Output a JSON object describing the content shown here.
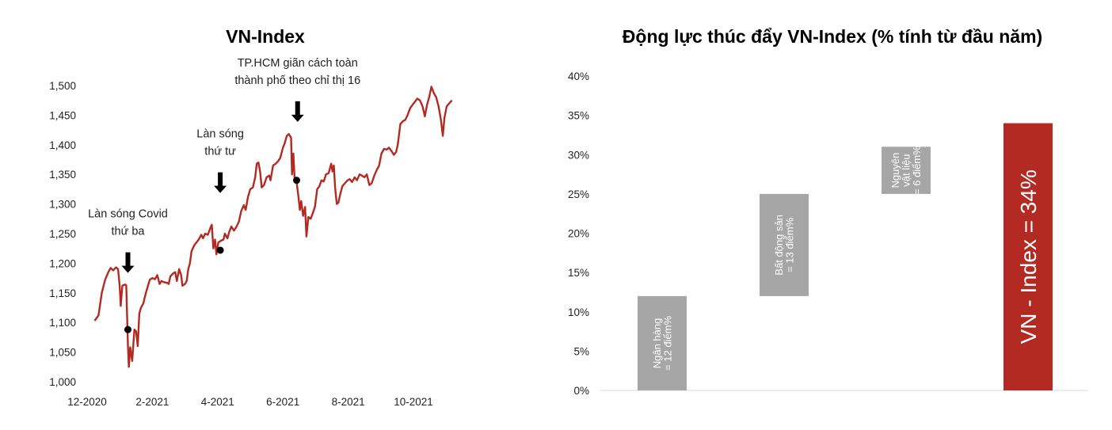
{
  "chart_data": [
    {
      "type": "line",
      "title": "VN-Index",
      "xlabel": "",
      "ylabel": "",
      "ylim": [
        1000,
        1500
      ],
      "y_ticks": [
        "1,000",
        "1,050",
        "1,100",
        "1,150",
        "1,200",
        "1,250",
        "1,300",
        "1,350",
        "1,400",
        "1,450",
        "1,500"
      ],
      "x_ticks": [
        {
          "t": 0,
          "label": "12-2020"
        },
        {
          "t": 2,
          "label": "2-2021"
        },
        {
          "t": 4,
          "label": "4-2021"
        },
        {
          "t": 6,
          "label": "6-2021"
        },
        {
          "t": 8,
          "label": "8-2021"
        },
        {
          "t": 10,
          "label": "10-2021"
        }
      ],
      "color": "#b22a22",
      "series": [
        {
          "values": [
            [
              0.23,
              1103
            ],
            [
              0.35,
              1112
            ],
            [
              0.45,
              1150
            ],
            [
              0.55,
              1172
            ],
            [
              0.65,
              1185
            ],
            [
              0.72,
              1192
            ],
            [
              0.8,
              1188
            ],
            [
              0.88,
              1193
            ],
            [
              0.95,
              1190
            ],
            [
              1.0,
              1160
            ],
            [
              1.03,
              1128
            ],
            [
              1.08,
              1162
            ],
            [
              1.15,
              1164
            ],
            [
              1.2,
              1163
            ],
            [
              1.25,
              1062
            ],
            [
              1.28,
              1025
            ],
            [
              1.32,
              1058
            ],
            [
              1.38,
              1035
            ],
            [
              1.45,
              1088
            ],
            [
              1.5,
              1085
            ],
            [
              1.55,
              1060
            ],
            [
              1.6,
              1115
            ],
            [
              1.65,
              1125
            ],
            [
              1.72,
              1132
            ],
            [
              1.8,
              1150
            ],
            [
              1.88,
              1165
            ],
            [
              1.92,
              1172
            ],
            [
              2.0,
              1175
            ],
            [
              2.08,
              1173
            ],
            [
              2.15,
              1180
            ],
            [
              2.22,
              1165
            ],
            [
              2.28,
              1170
            ],
            [
              2.35,
              1168
            ],
            [
              2.45,
              1167
            ],
            [
              2.5,
              1165
            ],
            [
              2.55,
              1178
            ],
            [
              2.62,
              1182
            ],
            [
              2.7,
              1185
            ],
            [
              2.75,
              1170
            ],
            [
              2.82,
              1190
            ],
            [
              2.88,
              1180
            ],
            [
              2.92,
              1162
            ],
            [
              3.0,
              1165
            ],
            [
              3.05,
              1170
            ],
            [
              3.1,
              1190
            ],
            [
              3.15,
              1200
            ],
            [
              3.2,
              1220
            ],
            [
              3.28,
              1230
            ],
            [
              3.35,
              1235
            ],
            [
              3.42,
              1240
            ],
            [
              3.5,
              1248
            ],
            [
              3.55,
              1242
            ],
            [
              3.62,
              1250
            ],
            [
              3.7,
              1248
            ],
            [
              3.78,
              1260
            ],
            [
              3.82,
              1265
            ],
            [
              3.87,
              1225
            ],
            [
              3.92,
              1240
            ],
            [
              3.96,
              1215
            ],
            [
              4.02,
              1235
            ],
            [
              4.1,
              1238
            ],
            [
              4.18,
              1240
            ],
            [
              4.22,
              1250
            ],
            [
              4.3,
              1242
            ],
            [
              4.35,
              1252
            ],
            [
              4.42,
              1262
            ],
            [
              4.5,
              1255
            ],
            [
              4.58,
              1262
            ],
            [
              4.65,
              1270
            ],
            [
              4.72,
              1288
            ],
            [
              4.8,
              1298
            ],
            [
              4.86,
              1290
            ],
            [
              4.93,
              1312
            ],
            [
              5.0,
              1325
            ],
            [
              5.08,
              1328
            ],
            [
              5.15,
              1345
            ],
            [
              5.2,
              1368
            ],
            [
              5.25,
              1370
            ],
            [
              5.3,
              1355
            ],
            [
              5.35,
              1328
            ],
            [
              5.42,
              1332
            ],
            [
              5.5,
              1345
            ],
            [
              5.58,
              1348
            ],
            [
              5.62,
              1340
            ],
            [
              5.7,
              1365
            ],
            [
              5.78,
              1368
            ],
            [
              5.85,
              1372
            ],
            [
              5.92,
              1378
            ],
            [
              6.0,
              1395
            ],
            [
              6.05,
              1402
            ],
            [
              6.12,
              1415
            ],
            [
              6.18,
              1418
            ],
            [
              6.25,
              1412
            ],
            [
              6.28,
              1350
            ],
            [
              6.32,
              1385
            ],
            [
              6.36,
              1342
            ],
            [
              6.42,
              1337
            ],
            [
              6.48,
              1310
            ],
            [
              6.52,
              1290
            ],
            [
              6.56,
              1305
            ],
            [
              6.62,
              1280
            ],
            [
              6.68,
              1295
            ],
            [
              6.72,
              1245
            ],
            [
              6.78,
              1278
            ],
            [
              6.85,
              1275
            ],
            [
              6.92,
              1285
            ],
            [
              6.98,
              1295
            ],
            [
              7.05,
              1325
            ],
            [
              7.12,
              1330
            ],
            [
              7.18,
              1340
            ],
            [
              7.25,
              1338
            ],
            [
              7.32,
              1350
            ],
            [
              7.4,
              1352
            ],
            [
              7.48,
              1368
            ],
            [
              7.52,
              1355
            ],
            [
              7.56,
              1365
            ],
            [
              7.6,
              1328
            ],
            [
              7.65,
              1300
            ],
            [
              7.7,
              1302
            ],
            [
              7.75,
              1315
            ],
            [
              7.82,
              1330
            ],
            [
              7.9,
              1335
            ],
            [
              7.98,
              1340
            ],
            [
              8.05,
              1342
            ],
            [
              8.12,
              1337
            ],
            [
              8.2,
              1345
            ],
            [
              8.27,
              1340
            ],
            [
              8.35,
              1350
            ],
            [
              8.42,
              1348
            ],
            [
              8.5,
              1345
            ],
            [
              8.57,
              1350
            ],
            [
              8.65,
              1332
            ],
            [
              8.72,
              1335
            ],
            [
              8.8,
              1348
            ],
            [
              8.88,
              1358
            ],
            [
              8.95,
              1365
            ],
            [
              9.02,
              1385
            ],
            [
              9.1,
              1393
            ],
            [
              9.18,
              1392
            ],
            [
              9.25,
              1395
            ],
            [
              9.32,
              1390
            ],
            [
              9.4,
              1383
            ],
            [
              9.47,
              1388
            ],
            [
              9.52,
              1400
            ],
            [
              9.6,
              1435
            ],
            [
              9.68,
              1440
            ],
            [
              9.75,
              1442
            ],
            [
              9.82,
              1450
            ],
            [
              9.9,
              1462
            ],
            [
              9.98,
              1468
            ],
            [
              10.05,
              1473
            ],
            [
              10.12,
              1478
            ],
            [
              10.2,
              1475
            ],
            [
              10.28,
              1465
            ],
            [
              10.35,
              1448
            ],
            [
              10.42,
              1468
            ],
            [
              10.48,
              1480
            ],
            [
              10.55,
              1498
            ],
            [
              10.62,
              1488
            ],
            [
              10.7,
              1480
            ],
            [
              10.77,
              1465
            ],
            [
              10.84,
              1443
            ],
            [
              10.9,
              1415
            ],
            [
              10.95,
              1445
            ],
            [
              11.02,
              1465
            ],
            [
              11.1,
              1470
            ],
            [
              11.18,
              1475
            ]
          ]
        }
      ],
      "markers": [
        {
          "x": 1.25,
          "y": 1088
        },
        {
          "x": 4.08,
          "y": 1222
        },
        {
          "x": 6.42,
          "y": 1340
        }
      ],
      "annotations": [
        {
          "lines": [
            "Làn sóng Covid",
            "thứ ba"
          ],
          "x": 1.25,
          "y": 1165
        },
        {
          "lines": [
            "Làn sóng",
            "thứ tư"
          ],
          "x": 4.08,
          "y": 1300
        },
        {
          "lines": [
            "TP.HCM giãn cách toàn",
            "thành phố theo chỉ thị 16"
          ],
          "x": 6.45,
          "y": 1420
        }
      ]
    },
    {
      "type": "bar",
      "title": "Động lực thúc đẩy VN-Index (% tính từ đầu năm)",
      "xlabel": "",
      "ylabel": "",
      "ylim": [
        0,
        40
      ],
      "y_ticks": [
        "0%",
        "5%",
        "10%",
        "15%",
        "20%",
        "25%",
        "30%",
        "35%",
        "40%"
      ],
      "waterfall": true,
      "bars": [
        {
          "label_lines": [
            "Ngân hàng",
            "= 12 điểm%"
          ],
          "start": 0,
          "end": 12,
          "color": "#a6a6a6",
          "label_size": "small"
        },
        {
          "label_lines": [
            "Bất động sản",
            "= 13 điểm%"
          ],
          "start": 12,
          "end": 25,
          "color": "#a6a6a6",
          "label_size": "small"
        },
        {
          "label_lines": [
            "Nguyên",
            "vật liệu",
            "= 6 điểm%"
          ],
          "start": 25,
          "end": 31,
          "color": "#a6a6a6",
          "label_size": "small"
        },
        {
          "label_lines": [
            "VN - Index = 34%"
          ],
          "start": 0,
          "end": 34,
          "color": "#b22a22",
          "label_size": "big"
        }
      ]
    }
  ]
}
